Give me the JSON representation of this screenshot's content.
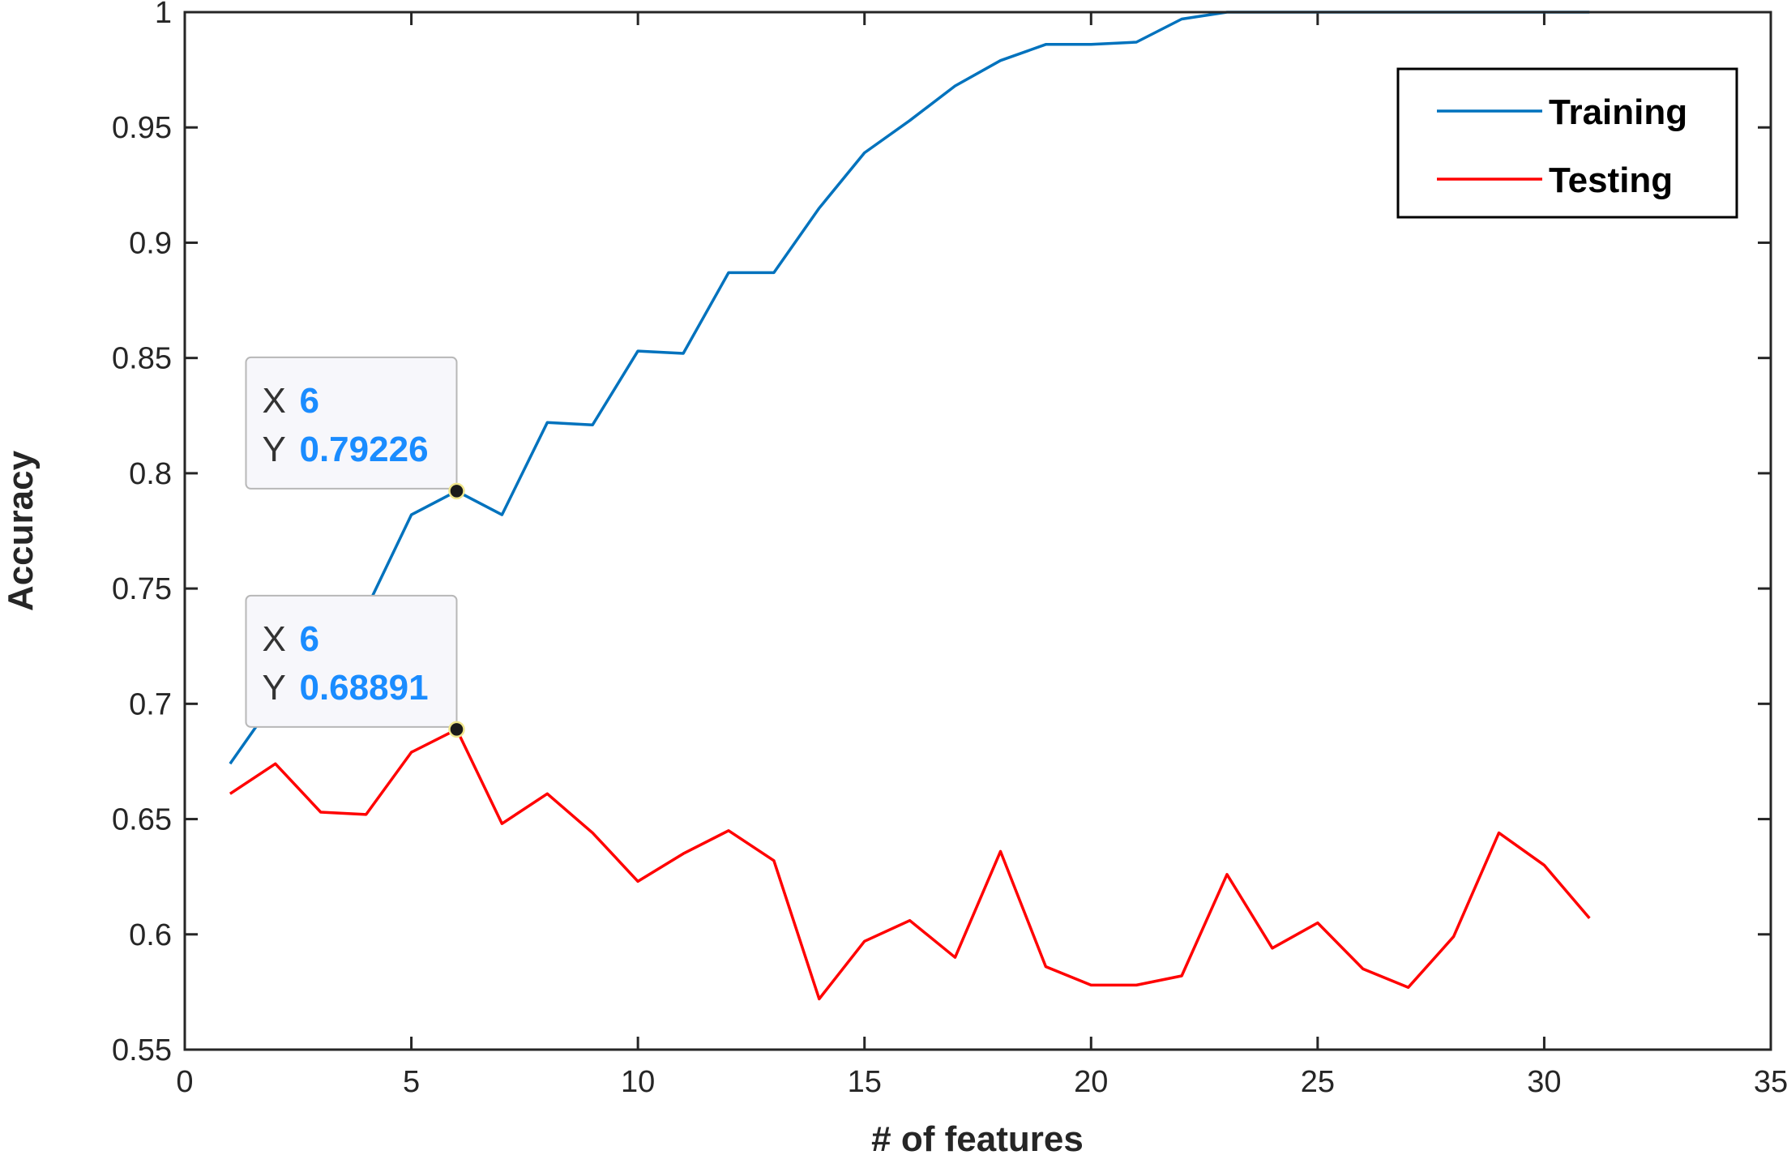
{
  "chart_data": {
    "type": "line",
    "title": "",
    "xlabel": "# of features",
    "ylabel": "Accuracy",
    "xlim": [
      0,
      35
    ],
    "ylim": [
      0.55,
      1
    ],
    "xticks": [
      0,
      5,
      10,
      15,
      20,
      25,
      30,
      35
    ],
    "yticks": [
      0.55,
      0.6,
      0.65,
      0.7,
      0.75,
      0.8,
      0.85,
      0.9,
      0.95,
      1
    ],
    "ytick_labels": [
      "0.55",
      "0.6",
      "0.65",
      "0.7",
      "0.75",
      "0.8",
      "0.85",
      "0.9",
      "0.95",
      "1"
    ],
    "grid": false,
    "legend_position": "top-right",
    "x": [
      1,
      2,
      3,
      4,
      5,
      6,
      7,
      8,
      9,
      10,
      11,
      12,
      13,
      14,
      15,
      16,
      17,
      18,
      19,
      20,
      21,
      22,
      23,
      24,
      25,
      26,
      27,
      28,
      29,
      30,
      31
    ],
    "series": [
      {
        "name": "Training",
        "color": "#0072bd",
        "values": [
          0.674,
          0.702,
          0.716,
          0.741,
          0.782,
          0.79226,
          0.782,
          0.822,
          0.821,
          0.853,
          0.852,
          0.887,
          0.887,
          0.915,
          0.939,
          0.953,
          0.968,
          0.979,
          0.986,
          0.986,
          0.987,
          0.997,
          1.0,
          1.0,
          1.0,
          1.0,
          1.0,
          1.0,
          1.0,
          1.0,
          1.0
        ]
      },
      {
        "name": "Testing",
        "color": "#ff0000",
        "values": [
          0.661,
          0.674,
          0.653,
          0.652,
          0.679,
          0.68891,
          0.648,
          0.661,
          0.644,
          0.623,
          0.635,
          0.645,
          0.632,
          0.572,
          0.597,
          0.606,
          0.59,
          0.636,
          0.586,
          0.578,
          0.578,
          0.582,
          0.626,
          0.594,
          0.605,
          0.585,
          0.577,
          0.599,
          0.644,
          0.63,
          0.607
        ]
      }
    ],
    "datatips": [
      {
        "x_label": "X",
        "y_label": "Y",
        "x_value": "6",
        "y_value": "0.79226",
        "x": 6,
        "y": 0.79226
      },
      {
        "x_label": "X",
        "y_label": "Y",
        "x_value": "6",
        "y_value": "0.68891",
        "x": 6,
        "y": 0.68891
      }
    ]
  }
}
